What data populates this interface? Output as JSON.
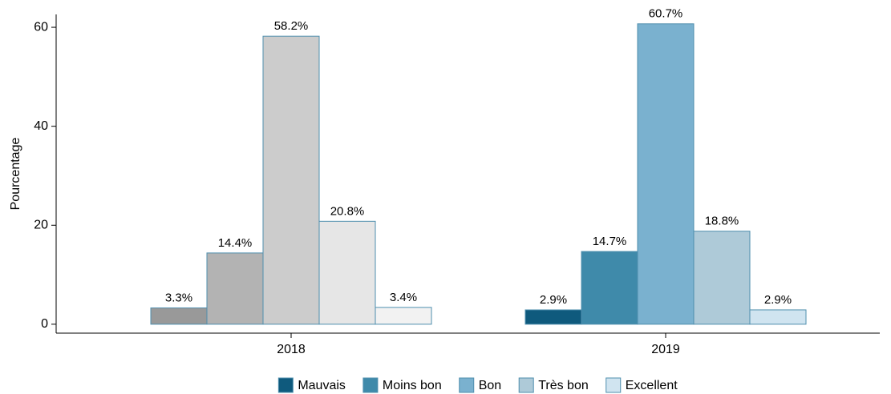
{
  "chart_data": {
    "type": "bar",
    "y_label": "Pourcentage",
    "categories": [
      "2018",
      "2019"
    ],
    "series": [
      {
        "name": "Mauvais",
        "color": "#0f5a7d",
        "point_colors": [
          "#999999",
          "#0f5a7d"
        ],
        "values": [
          3.3,
          2.9
        ],
        "value_labels": [
          "3.3%",
          "2.9%"
        ]
      },
      {
        "name": "Moins bon",
        "color": "#3f8aaa",
        "point_colors": [
          "#b3b3b3",
          "#3f8aaa"
        ],
        "values": [
          14.4,
          14.7
        ],
        "value_labels": [
          "14.4%",
          "14.7%"
        ]
      },
      {
        "name": "Bon",
        "color": "#7ab1cf",
        "point_colors": [
          "#cccccc",
          "#7ab1cf"
        ],
        "values": [
          58.2,
          60.7
        ],
        "value_labels": [
          "58.2%",
          "60.7%"
        ]
      },
      {
        "name": "Très bon",
        "color": "#aecad8",
        "point_colors": [
          "#e6e6e6",
          "#aecad8"
        ],
        "values": [
          20.8,
          18.8
        ],
        "value_labels": [
          "20.8%",
          "18.8%"
        ]
      },
      {
        "name": "Excellent",
        "color": "#d0e4f0",
        "point_colors": [
          "#f2f2f2",
          "#d0e4f0"
        ],
        "values": [
          3.4,
          2.9
        ],
        "value_labels": [
          "3.4%",
          "2.9%"
        ]
      }
    ],
    "bar_outline": "#4f8fae",
    "ylim": [
      -1.8,
      62.6
    ],
    "yticks": [
      0,
      20,
      40,
      60
    ],
    "grid": false,
    "legend": "bottom"
  }
}
